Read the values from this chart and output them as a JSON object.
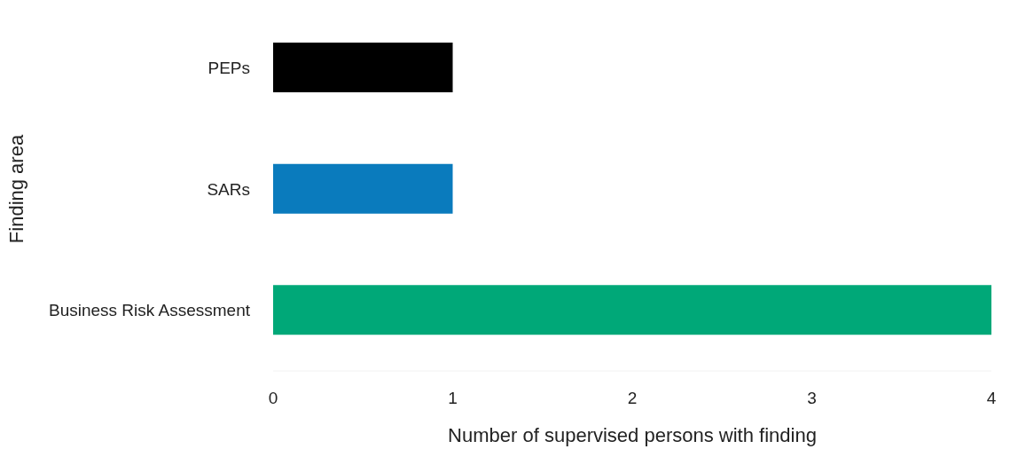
{
  "chart_data": {
    "type": "bar",
    "orientation": "horizontal",
    "xlabel": "Number of supervised persons with finding",
    "ylabel": "Finding area",
    "categories": [
      "PEPs",
      "SARs",
      "Business Risk Assessment"
    ],
    "values": [
      1,
      1,
      4
    ],
    "colors": [
      "#000000",
      "#0a7bbd",
      "#00a878"
    ],
    "xlim": [
      0,
      4
    ],
    "xticks": [
      0,
      1,
      2,
      3,
      4
    ],
    "grid": false
  }
}
